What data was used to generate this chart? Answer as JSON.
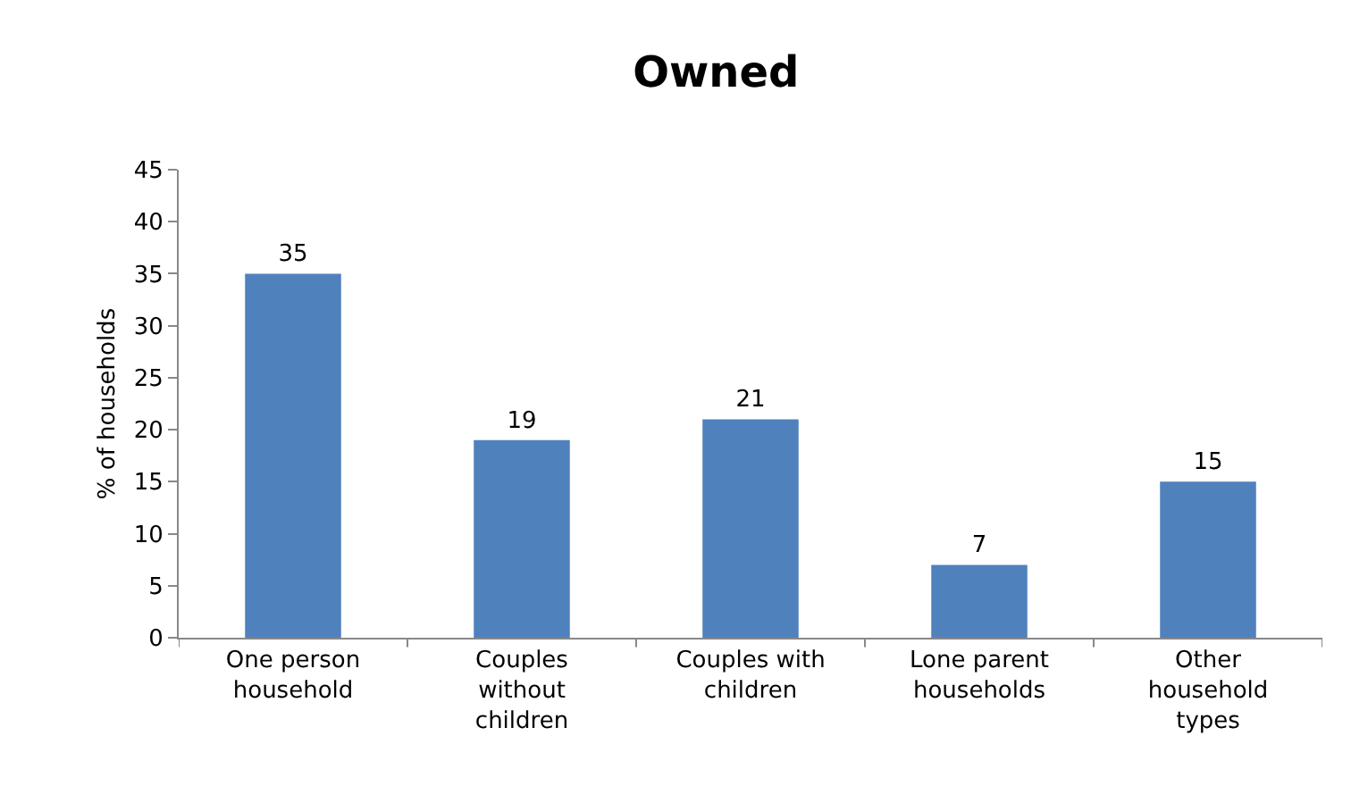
{
  "chart_data": {
    "type": "bar",
    "title": "Owned",
    "ylabel": "% of households",
    "categories": [
      "One person household",
      "Couples without children",
      "Couples with children",
      "Lone parent households",
      "Other household types"
    ],
    "values": [
      35,
      19,
      21,
      7,
      15
    ],
    "color": "#4f81bd",
    "ylim": [
      0,
      45
    ],
    "yticks": [
      0,
      5,
      10,
      15,
      20,
      25,
      30,
      35,
      40,
      45
    ],
    "grid": false,
    "legend": false,
    "data_labels": true
  }
}
